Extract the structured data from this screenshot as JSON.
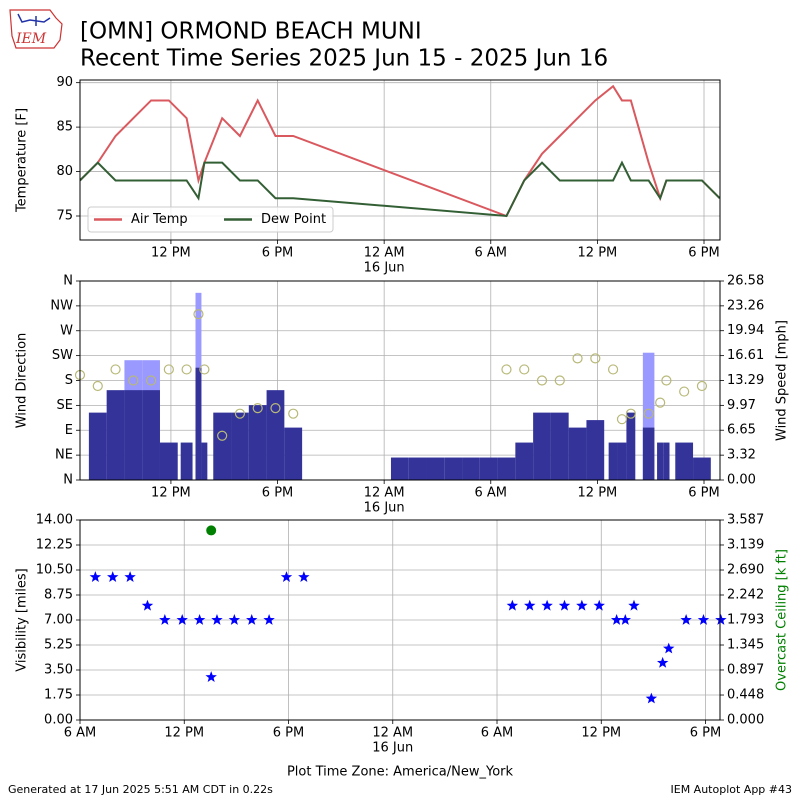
{
  "header": {
    "logo_text": "IEM",
    "title": "[OMN] ORMOND BEACH MUNI",
    "subtitle": "Recent Time Series 2025 Jun 15 - 2025 Jun 16"
  },
  "footer": {
    "left": "Generated at 17 Jun 2025 5:51 AM CDT in 0.22s",
    "right": "IEM Autoplot App #43"
  },
  "chart_data": [
    {
      "type": "line",
      "ylabel": "Temperature [F]",
      "x": [
        "2025-06-15 06:53",
        "2025-06-15 07:53",
        "2025-06-15 08:53",
        "2025-06-15 09:53",
        "2025-06-15 10:53",
        "2025-06-15 11:53",
        "2025-06-15 12:53",
        "2025-06-15 13:33",
        "2025-06-15 13:53",
        "2025-06-15 14:53",
        "2025-06-15 15:53",
        "2025-06-15 16:53",
        "2025-06-15 17:53",
        "2025-06-15 18:53",
        "2025-06-16 06:53",
        "2025-06-16 07:53",
        "2025-06-16 08:53",
        "2025-06-16 09:53",
        "2025-06-16 10:53",
        "2025-06-16 11:53",
        "2025-06-16 12:53",
        "2025-06-16 13:23",
        "2025-06-16 13:53",
        "2025-06-16 14:53",
        "2025-06-16 15:32",
        "2025-06-16 15:53",
        "2025-06-16 16:53",
        "2025-06-16 17:53",
        "2025-06-16 18:53"
      ],
      "series": [
        {
          "name": "Air Temp",
          "color": "#d9595f",
          "type": "line",
          "values": [
            79,
            81,
            84,
            86,
            88,
            88,
            86,
            79,
            81,
            86,
            84,
            88,
            84,
            84,
            75,
            79,
            82,
            84,
            86,
            88,
            89.6,
            88,
            88,
            81,
            77,
            79,
            79,
            79,
            77
          ]
        },
        {
          "name": "Dew Point",
          "color": "#335f35",
          "type": "line",
          "values": [
            79,
            81,
            79,
            79,
            79,
            79,
            79,
            77,
            81,
            81,
            79,
            79,
            77,
            77,
            75,
            79,
            81,
            79,
            79,
            79,
            79,
            81,
            79,
            79,
            77,
            79,
            79,
            79,
            77
          ]
        }
      ],
      "xlim": [
        "2025-06-15 06:53",
        "2025-06-16 18:54"
      ],
      "xticks": [
        {
          "value": "2025-06-15 12:00",
          "label": "12 PM"
        },
        {
          "value": "2025-06-15 18:00",
          "label": "6 PM"
        },
        {
          "value": "2025-06-16 00:00",
          "label": "12 AM",
          "sublabel": "16 Jun"
        },
        {
          "value": "2025-06-16 06:00",
          "label": "6 AM"
        },
        {
          "value": "2025-06-16 12:00",
          "label": "12 PM"
        },
        {
          "value": "2025-06-16 18:00",
          "label": "6 PM"
        }
      ],
      "ylim": [
        72.3,
        90.3
      ],
      "yticks": [
        75,
        80,
        85,
        90
      ],
      "grid": true,
      "legend": "lower left"
    },
    {
      "type": "bar",
      "ylabel": "Wind Direction",
      "y2label": "Wind Speed [mph]",
      "x": [
        "2025-06-15 06:53",
        "2025-06-15 07:53",
        "2025-06-15 08:53",
        "2025-06-15 09:53",
        "2025-06-15 10:53",
        "2025-06-15 11:53",
        "2025-06-15 12:53",
        "2025-06-15 13:33",
        "2025-06-15 13:53",
        "2025-06-15 14:53",
        "2025-06-15 15:53",
        "2025-06-15 16:53",
        "2025-06-15 17:53",
        "2025-06-15 18:53",
        "2025-06-16 00:53",
        "2025-06-16 01:53",
        "2025-06-16 02:53",
        "2025-06-16 03:53",
        "2025-06-16 04:53",
        "2025-06-16 05:53",
        "2025-06-16 06:53",
        "2025-06-16 07:53",
        "2025-06-16 08:53",
        "2025-06-16 09:53",
        "2025-06-16 10:53",
        "2025-06-16 11:53",
        "2025-06-16 12:53",
        "2025-06-16 13:23",
        "2025-06-16 13:53",
        "2025-06-16 14:53",
        "2025-06-16 15:32",
        "2025-06-16 15:53",
        "2025-06-16 16:53",
        "2025-06-16 17:53",
        "2025-06-16 18:53"
      ],
      "series": [
        {
          "type": "bar",
          "axis": "y2",
          "color": "#9999ff",
          "values": [
            null,
            null,
            null,
            16,
            16,
            null,
            null,
            25,
            null,
            null,
            null,
            null,
            null,
            null,
            null,
            null,
            null,
            null,
            null,
            null,
            null,
            null,
            null,
            null,
            null,
            null,
            null,
            null,
            null,
            17,
            null,
            null,
            null,
            null,
            null
          ]
        },
        {
          "type": "bar",
          "axis": "y2",
          "color": "#333399",
          "values": [
            null,
            9,
            12,
            12,
            12,
            5,
            5,
            15,
            5,
            9,
            9,
            10,
            12,
            7,
            3,
            3,
            3,
            3,
            3,
            3,
            3,
            5,
            9,
            9,
            7,
            8,
            5,
            5,
            9,
            7,
            5,
            5,
            5,
            3,
            null
          ]
        },
        {
          "type": "scatter",
          "marker": "open-circle",
          "color": "#b8b878",
          "values": [
            190,
            170,
            200,
            180,
            180,
            200,
            200,
            300,
            200,
            80,
            120,
            130,
            130,
            120,
            null,
            null,
            null,
            null,
            null,
            null,
            200,
            200,
            180,
            180,
            220,
            220,
            200,
            110,
            120,
            120,
            140,
            180,
            160,
            170,
            null
          ]
        }
      ],
      "xlim": [
        "2025-06-15 06:53",
        "2025-06-16 18:54"
      ],
      "xticks": [
        {
          "value": "2025-06-15 12:00",
          "label": "12 PM"
        },
        {
          "value": "2025-06-15 18:00",
          "label": "6 PM"
        },
        {
          "value": "2025-06-16 00:00",
          "label": "12 AM",
          "sublabel": "16 Jun"
        },
        {
          "value": "2025-06-16 06:00",
          "label": "6 AM"
        },
        {
          "value": "2025-06-16 12:00",
          "label": "12 PM"
        },
        {
          "value": "2025-06-16 18:00",
          "label": "6 PM"
        }
      ],
      "ylim": [
        0,
        360
      ],
      "yticks": [
        {
          "value": 0,
          "label": "N"
        },
        {
          "value": 45,
          "label": "NE"
        },
        {
          "value": 90,
          "label": "E"
        },
        {
          "value": 135,
          "label": "SE"
        },
        {
          "value": 180,
          "label": "S"
        },
        {
          "value": 225,
          "label": "SW"
        },
        {
          "value": 270,
          "label": "W"
        },
        {
          "value": 315,
          "label": "NW"
        },
        {
          "value": 360,
          "label": "N"
        }
      ],
      "y2lim": [
        0,
        26.58
      ],
      "y2ticks": [
        {
          "value": 0,
          "label": "0.00"
        },
        3.32,
        6.65,
        9.97,
        13.29,
        16.61,
        19.94,
        23.26,
        26.58
      ],
      "grid": true
    },
    {
      "type": "scatter",
      "ylabel": "Visibility [miles]",
      "y2label": "Overcast Ceiling [k ft]",
      "y2label_color": "#008000",
      "xlabel": "Plot Time Zone: America/New_York",
      "x": [
        "2025-06-15 06:53",
        "2025-06-15 07:53",
        "2025-06-15 08:53",
        "2025-06-15 09:53",
        "2025-06-15 10:53",
        "2025-06-15 11:53",
        "2025-06-15 12:53",
        "2025-06-15 13:33",
        "2025-06-15 13:53",
        "2025-06-15 14:53",
        "2025-06-15 15:53",
        "2025-06-15 16:53",
        "2025-06-15 17:53",
        "2025-06-15 18:53",
        "2025-06-16 06:53",
        "2025-06-16 07:53",
        "2025-06-16 08:53",
        "2025-06-16 09:53",
        "2025-06-16 10:53",
        "2025-06-16 11:53",
        "2025-06-16 12:53",
        "2025-06-16 13:23",
        "2025-06-16 13:53",
        "2025-06-16 14:53",
        "2025-06-16 15:32",
        "2025-06-16 15:53",
        "2025-06-16 16:53",
        "2025-06-16 17:53",
        "2025-06-16 18:53"
      ],
      "series": [
        {
          "type": "scatter",
          "marker": "star",
          "color": "#0000ff",
          "values": [
            10,
            10,
            10,
            8,
            7,
            7,
            7,
            3,
            7,
            7,
            7,
            7,
            10,
            10,
            8,
            8,
            8,
            8,
            8,
            8,
            7,
            7,
            8,
            1.5,
            4,
            5,
            7,
            7,
            7
          ]
        },
        {
          "type": "scatter",
          "marker": "circle",
          "axis": "y2",
          "color": "#008000",
          "values": [
            null,
            null,
            null,
            null,
            null,
            null,
            null,
            3.4,
            null,
            null,
            null,
            null,
            null,
            null,
            null,
            null,
            null,
            null,
            null,
            null,
            null,
            null,
            null,
            null,
            null,
            null,
            null,
            null,
            null
          ]
        }
      ],
      "xlim": [
        "2025-06-15 06:00",
        "2025-06-16 18:50"
      ],
      "xticks": [
        {
          "value": "2025-06-15 06:00",
          "label": "6 AM"
        },
        {
          "value": "2025-06-15 12:00",
          "label": "12 PM"
        },
        {
          "value": "2025-06-15 18:00",
          "label": "6 PM"
        },
        {
          "value": "2025-06-16 00:00",
          "label": "12 AM",
          "sublabel": "16 Jun"
        },
        {
          "value": "2025-06-16 06:00",
          "label": "6 AM"
        },
        {
          "value": "2025-06-16 12:00",
          "label": "12 PM"
        },
        {
          "value": "2025-06-16 18:00",
          "label": "6 PM"
        }
      ],
      "ylim": [
        0,
        14
      ],
      "yticks": [
        {
          "value": 0,
          "label": "0.00"
        },
        1.75,
        {
          "value": 3.5,
          "label": "3.50"
        },
        5.25,
        {
          "value": 7,
          "label": "7.00"
        },
        8.75,
        {
          "value": 10.5,
          "label": "10.50"
        },
        12.25,
        {
          "value": 14,
          "label": "14.00"
        }
      ],
      "y2lim": [
        0,
        3.587
      ],
      "y2ticks": [
        {
          "value": 0,
          "label": "0.000"
        },
        0.448,
        0.897,
        1.345,
        1.793,
        2.242,
        {
          "value": 2.69,
          "label": "2.690"
        },
        3.139,
        3.587
      ],
      "grid": true
    }
  ]
}
